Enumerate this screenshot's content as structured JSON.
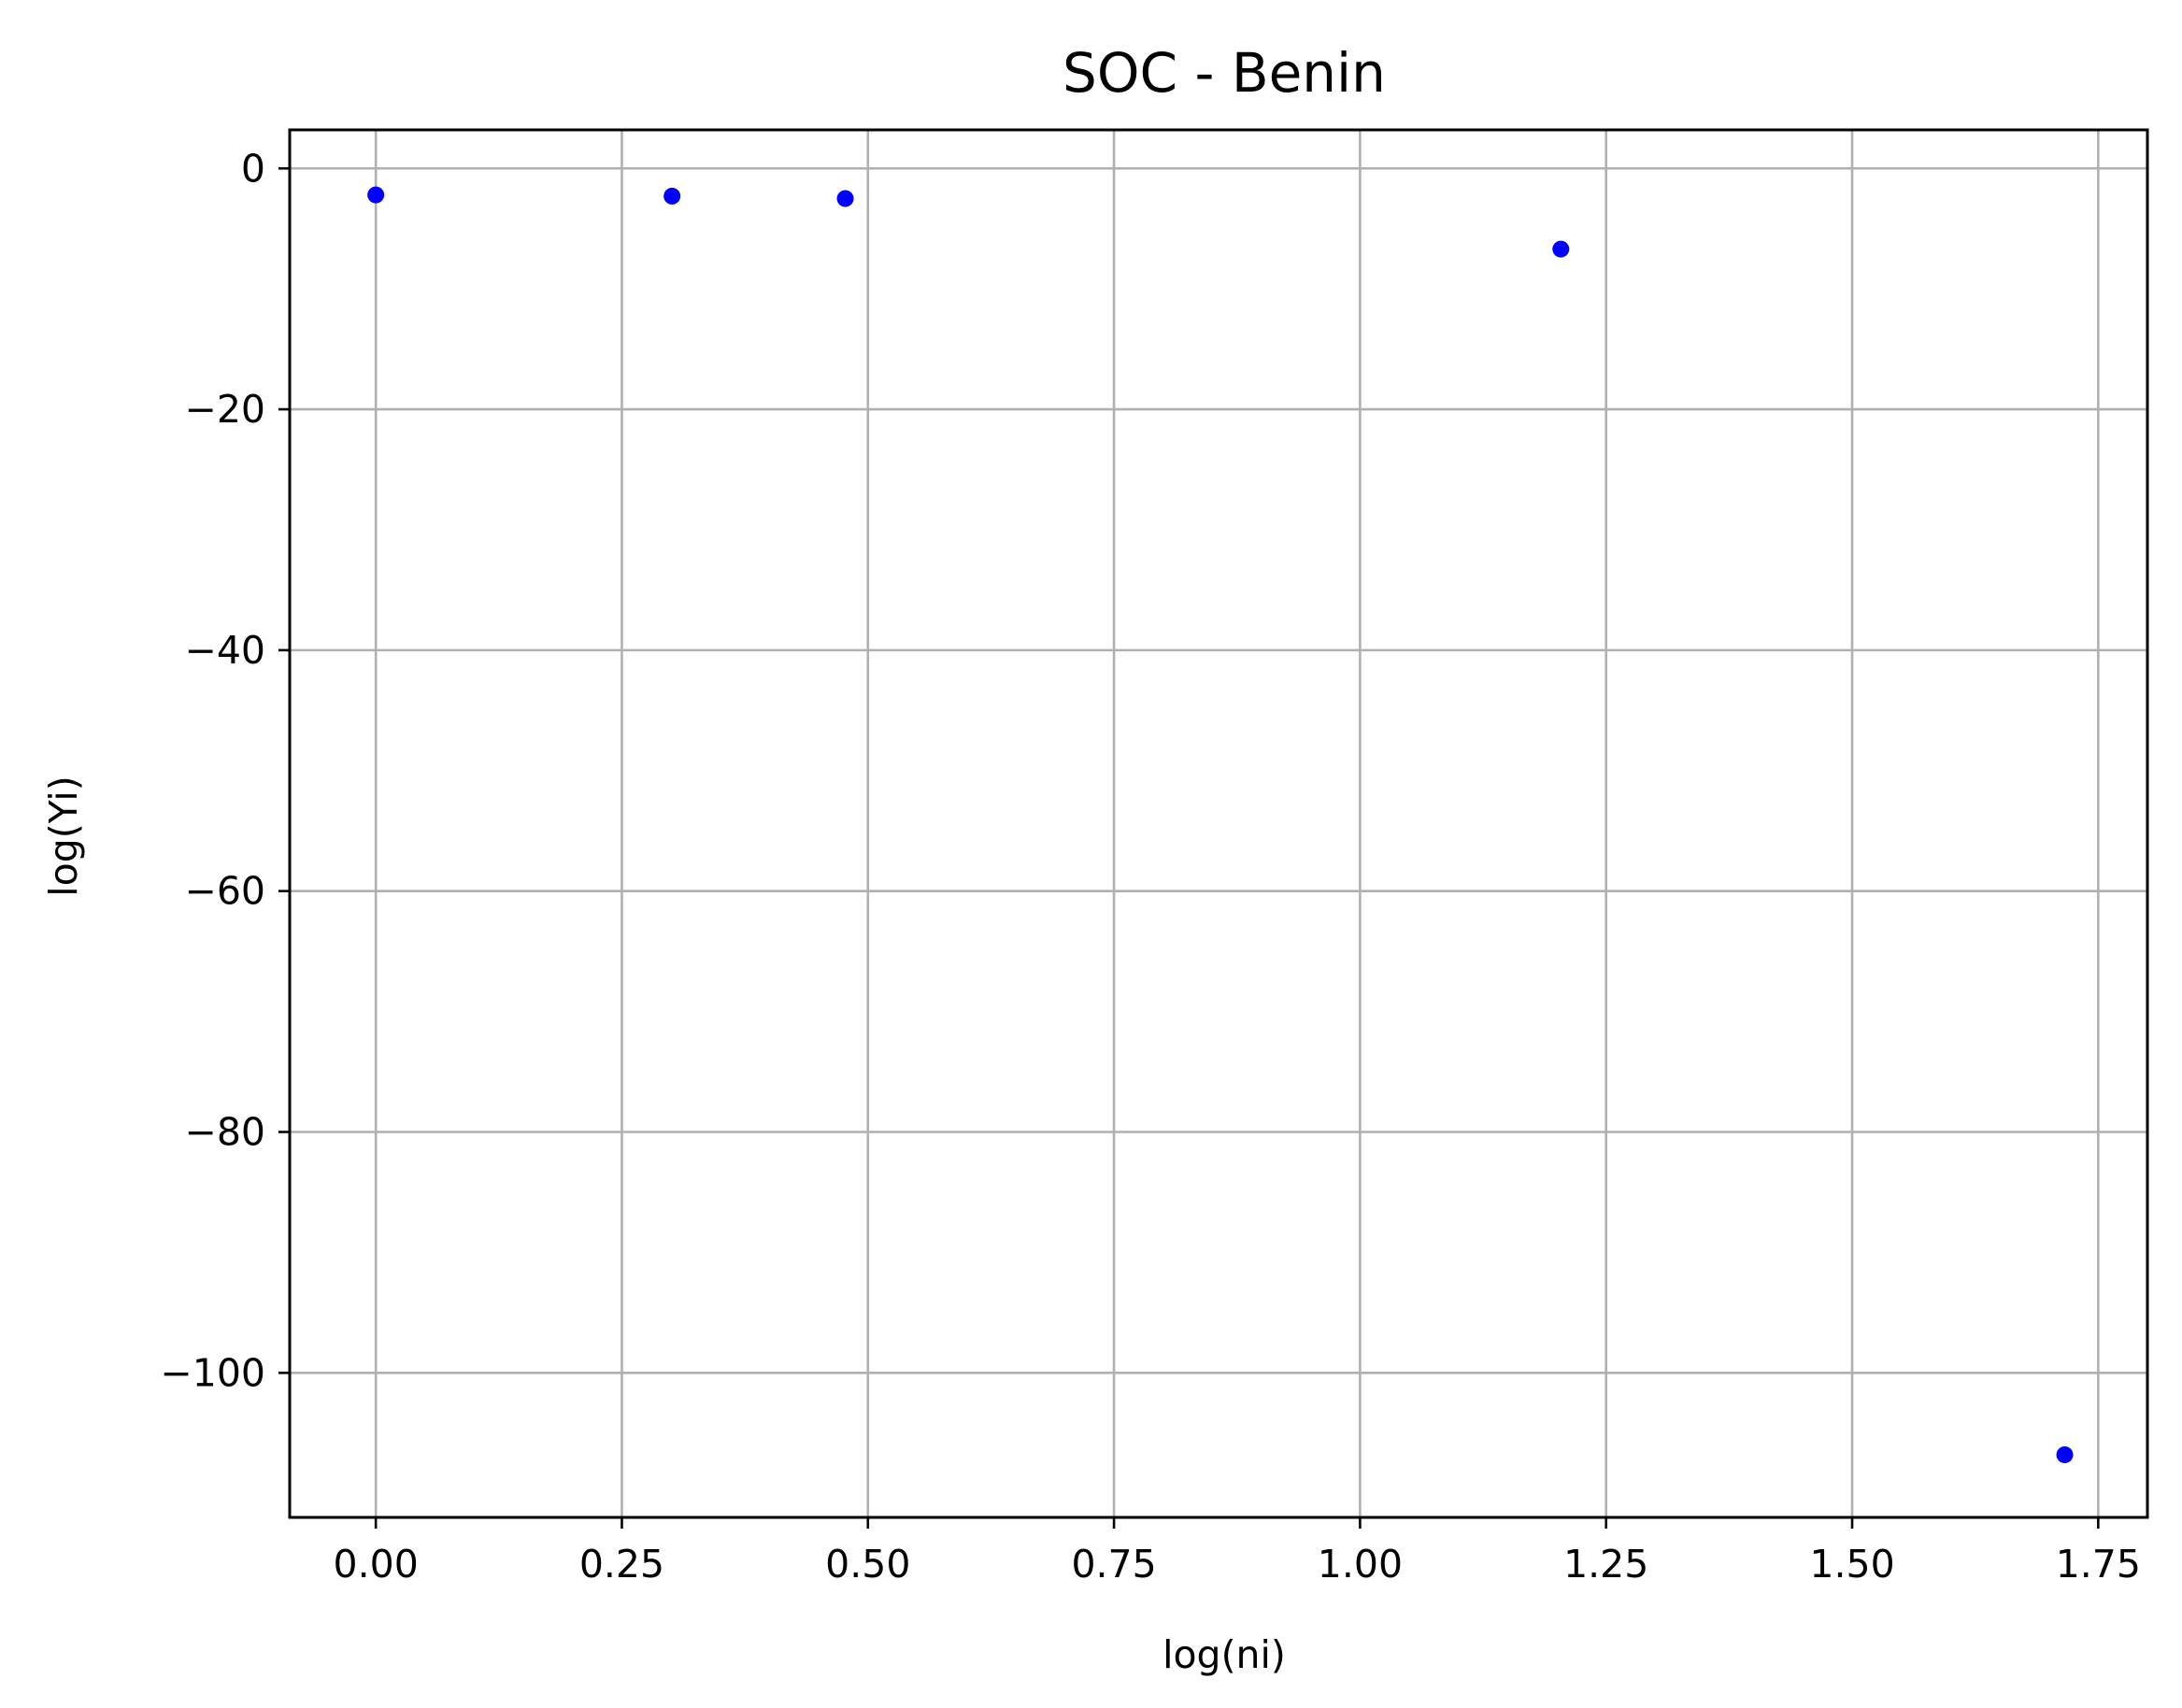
{
  "chart_data": {
    "type": "scatter",
    "title": "SOC - Benin",
    "xlabel": "log(ni)",
    "ylabel": "log(Yi)",
    "xlim": [
      -0.0875,
      1.8
    ],
    "ylim": [
      -112,
      3.2
    ],
    "xticks": [
      0.0,
      0.25,
      0.5,
      0.75,
      1.0,
      1.25,
      1.5,
      1.75
    ],
    "xtick_labels": [
      "0.00",
      "0.25",
      "0.50",
      "0.75",
      "1.00",
      "1.25",
      "1.50",
      "1.75"
    ],
    "yticks": [
      0,
      -20,
      -40,
      -60,
      -80,
      -100
    ],
    "ytick_labels": [
      "0",
      "−20",
      "−40",
      "−60",
      "−80",
      "−100"
    ],
    "grid": true,
    "legend": "none",
    "colors": {
      "points": "#0000ff",
      "grid": "#b0b0b0",
      "axes": "#000000"
    },
    "x": [
      0.0,
      0.301,
      0.477,
      1.204,
      1.716
    ],
    "y": [
      -2.2,
      -2.3,
      -2.5,
      -6.7,
      -106.8
    ]
  }
}
